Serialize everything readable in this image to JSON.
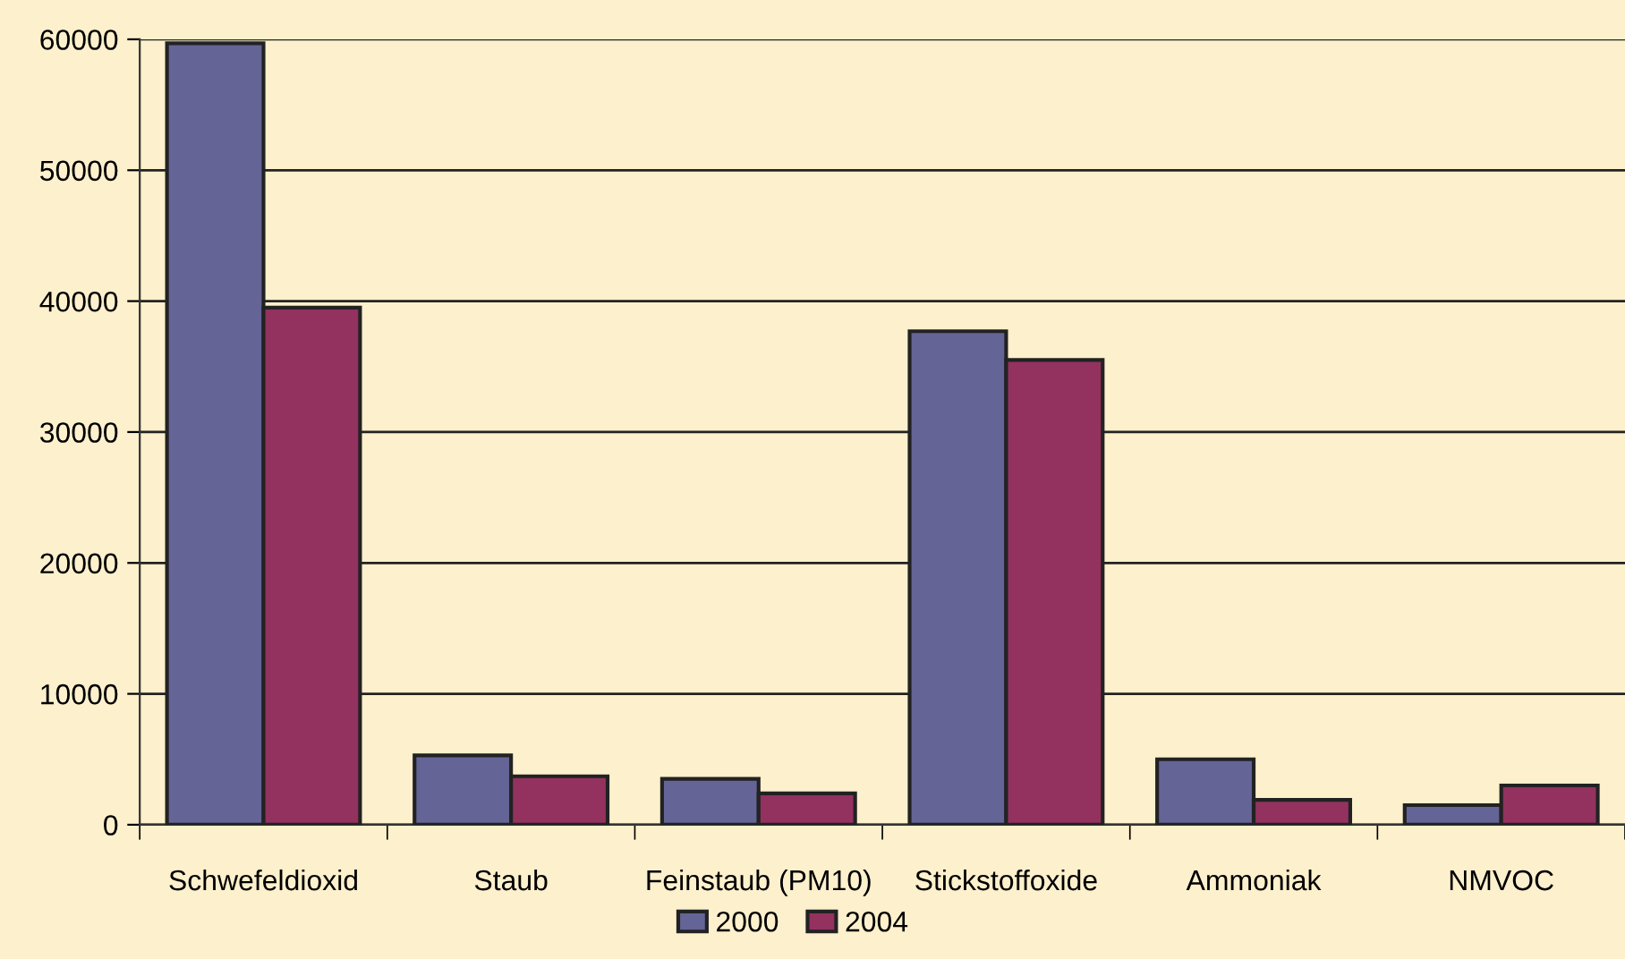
{
  "chart_data": {
    "type": "bar",
    "categories": [
      "Schwefeldioxid",
      "Staub",
      "Feinstaub (PM10)",
      "Stickstoffoxide",
      "Ammoniak",
      "NMVOC"
    ],
    "series": [
      {
        "name": "2000",
        "color": "#646496",
        "values": [
          59700,
          5300,
          3500,
          37700,
          5000,
          1500
        ]
      },
      {
        "name": "2004",
        "color": "#93325f",
        "values": [
          39500,
          3700,
          2400,
          35500,
          1900,
          3000
        ]
      }
    ],
    "ylim": [
      0,
      60000
    ],
    "yticks": [
      0,
      10000,
      20000,
      30000,
      40000,
      50000,
      60000
    ],
    "grid": "y",
    "legend": "bottom"
  }
}
